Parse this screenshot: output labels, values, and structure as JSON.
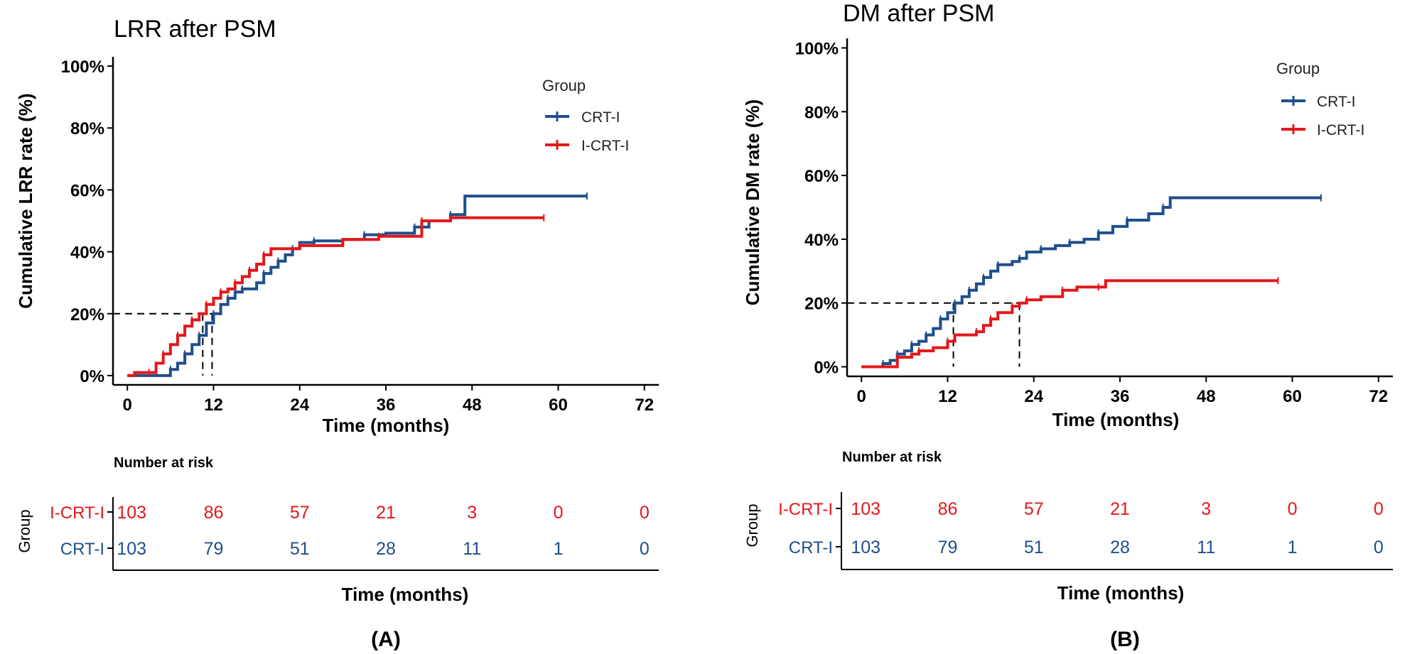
{
  "figure_labels": [
    "(A)",
    "(B)"
  ],
  "colors": {
    "CRT-I": "#1f4e8c",
    "I-CRT-I": "#e3171b"
  },
  "chart_data": [
    {
      "type": "line",
      "subtype": "kaplan-meier-cumulative-incidence",
      "title": "LRR after PSM",
      "xlabel": "Time (months)",
      "ylabel": "Cumulative LRR rate (%)",
      "xlim": [
        -2,
        74
      ],
      "ylim": [
        -3,
        103
      ],
      "x_ticks": [
        0,
        12,
        24,
        36,
        48,
        60,
        72
      ],
      "y_ticks": [
        0,
        20,
        40,
        60,
        80,
        100
      ],
      "y_tick_labels": [
        "0%",
        "20%",
        "40%",
        "60%",
        "80%",
        "100%"
      ],
      "legend": {
        "title": "Group",
        "entries": [
          "CRT-I",
          "I-CRT-I"
        ],
        "position": "top-right"
      },
      "reference_lines": {
        "y": 20,
        "x": [
          10.5,
          11.8
        ]
      },
      "series": [
        {
          "name": "CRT-I",
          "points": [
            [
              0,
              0
            ],
            [
              5,
              0
            ],
            [
              6,
              2
            ],
            [
              7,
              4
            ],
            [
              8,
              7
            ],
            [
              9,
              10
            ],
            [
              10,
              13
            ],
            [
              11,
              17
            ],
            [
              12,
              20
            ],
            [
              13,
              23
            ],
            [
              14,
              25
            ],
            [
              15,
              27
            ],
            [
              16,
              28
            ],
            [
              18,
              30
            ],
            [
              19,
              33
            ],
            [
              20,
              35
            ],
            [
              21,
              37
            ],
            [
              22,
              39
            ],
            [
              23,
              41
            ],
            [
              24,
              43
            ],
            [
              26,
              43.5
            ],
            [
              30,
              44
            ],
            [
              33,
              45.5
            ],
            [
              36,
              46
            ],
            [
              40,
              48
            ],
            [
              42,
              50
            ],
            [
              45,
              52
            ],
            [
              47,
              58
            ],
            [
              64,
              58
            ]
          ]
        },
        {
          "name": "I-CRT-I",
          "points": [
            [
              0,
              0
            ],
            [
              1,
              1
            ],
            [
              3,
              1
            ],
            [
              4,
              4
            ],
            [
              5,
              7
            ],
            [
              6,
              10
            ],
            [
              7,
              13
            ],
            [
              8,
              16
            ],
            [
              9,
              18
            ],
            [
              10,
              20
            ],
            [
              11,
              23
            ],
            [
              12,
              25
            ],
            [
              13,
              27
            ],
            [
              14,
              28
            ],
            [
              15,
              30
            ],
            [
              16,
              32
            ],
            [
              17,
              34
            ],
            [
              18,
              36
            ],
            [
              19,
              39
            ],
            [
              20,
              41
            ],
            [
              24,
              42
            ],
            [
              30,
              44
            ],
            [
              35,
              45
            ],
            [
              40,
              45
            ],
            [
              41,
              50
            ],
            [
              45,
              51
            ],
            [
              58,
              51
            ]
          ]
        }
      ],
      "risk_table": {
        "title": "Number at risk",
        "group_label": "Group",
        "xlabel": "Time (months)",
        "times": [
          0,
          12,
          24,
          36,
          48,
          60,
          72
        ],
        "rows": [
          {
            "label": "I-CRT-I",
            "values": [
              "103",
              "86",
              "57",
              "21",
              "3",
              "0",
              "0"
            ]
          },
          {
            "label": "CRT-I",
            "values": [
              "103",
              "79",
              "51",
              "28",
              "11",
              "1",
              "0"
            ]
          }
        ]
      }
    },
    {
      "type": "line",
      "subtype": "kaplan-meier-cumulative-incidence",
      "title": "DM after PSM",
      "xlabel": "Time (months)",
      "ylabel": "Cumulative DM rate (%)",
      "xlim": [
        -2,
        74
      ],
      "ylim": [
        -3,
        103
      ],
      "x_ticks": [
        0,
        12,
        24,
        36,
        48,
        60,
        72
      ],
      "y_ticks": [
        0,
        20,
        40,
        60,
        80,
        100
      ],
      "y_tick_labels": [
        "0%",
        "20%",
        "40%",
        "60%",
        "80%",
        "100%"
      ],
      "legend": {
        "title": "Group",
        "entries": [
          "CRT-I",
          "I-CRT-I"
        ],
        "position": "top-right"
      },
      "reference_lines": {
        "y": 20,
        "x": [
          12.8,
          22
        ]
      },
      "series": [
        {
          "name": "CRT-I",
          "points": [
            [
              0,
              0
            ],
            [
              2,
              0
            ],
            [
              3,
              1
            ],
            [
              4,
              2
            ],
            [
              5,
              4
            ],
            [
              6,
              5
            ],
            [
              7,
              7
            ],
            [
              8,
              8
            ],
            [
              9,
              10
            ],
            [
              10,
              12
            ],
            [
              11,
              15
            ],
            [
              12,
              17
            ],
            [
              13,
              20
            ],
            [
              14,
              22
            ],
            [
              15,
              24
            ],
            [
              16,
              26
            ],
            [
              17,
              28
            ],
            [
              18,
              30
            ],
            [
              19,
              32
            ],
            [
              21,
              33
            ],
            [
              22,
              34
            ],
            [
              23,
              36
            ],
            [
              25,
              37
            ],
            [
              27,
              38
            ],
            [
              29,
              39
            ],
            [
              31,
              40
            ],
            [
              33,
              42
            ],
            [
              35,
              44
            ],
            [
              37,
              46
            ],
            [
              40,
              48
            ],
            [
              42,
              50
            ],
            [
              43,
              53
            ],
            [
              64,
              53
            ]
          ]
        },
        {
          "name": "I-CRT-I",
          "points": [
            [
              0,
              0
            ],
            [
              4.5,
              0
            ],
            [
              5,
              3
            ],
            [
              7,
              4
            ],
            [
              8,
              5
            ],
            [
              10,
              6
            ],
            [
              12,
              8
            ],
            [
              13,
              10
            ],
            [
              16,
              11
            ],
            [
              17,
              13
            ],
            [
              18,
              15
            ],
            [
              19,
              17
            ],
            [
              21,
              19
            ],
            [
              22,
              20
            ],
            [
              23,
              21
            ],
            [
              25,
              22
            ],
            [
              28,
              24
            ],
            [
              30,
              25
            ],
            [
              33,
              25
            ],
            [
              34,
              27
            ],
            [
              58,
              27
            ]
          ]
        }
      ],
      "risk_table": {
        "title": "Number at risk",
        "group_label": "Group",
        "xlabel": "Time (months)",
        "times": [
          0,
          12,
          24,
          36,
          48,
          60,
          72
        ],
        "rows": [
          {
            "label": "I-CRT-I",
            "values": [
              "103",
              "86",
              "57",
              "21",
              "3",
              "0",
              "0"
            ]
          },
          {
            "label": "CRT-I",
            "values": [
              "103",
              "79",
              "51",
              "28",
              "11",
              "1",
              "0"
            ]
          }
        ]
      }
    }
  ]
}
